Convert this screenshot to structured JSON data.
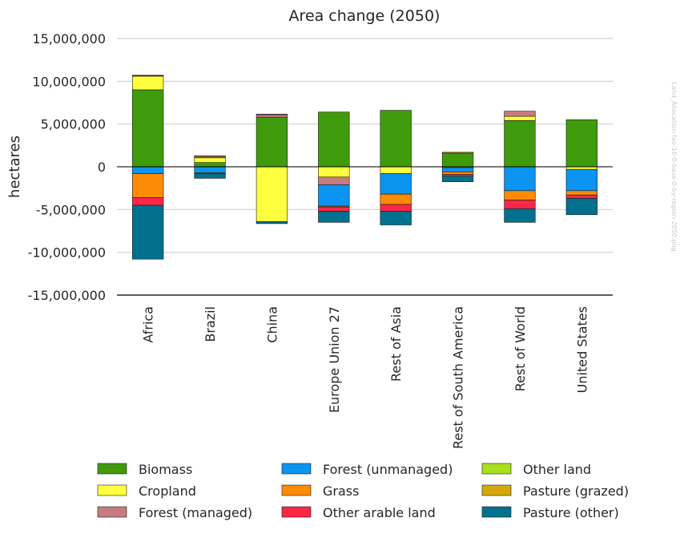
{
  "chart_data": {
    "type": "bar",
    "stacked": true,
    "title": "Area change (2050)",
    "ylabel": "hectares",
    "xlabel": "",
    "ylim": [
      -15000000,
      15000000
    ],
    "yticks": [
      15000000,
      10000000,
      5000000,
      0,
      -5000000,
      -10000000,
      -15000000
    ],
    "ytick_labels": [
      "15,000,000",
      "10,000,000",
      "5,000,000",
      "0",
      "-5,000,000",
      "-10,000,000",
      "-15,000,000"
    ],
    "grid": "horizontal",
    "legend_placement": "bottom",
    "categories": [
      "Africa",
      "Brazil",
      "China",
      "Europe Union 27",
      "Rest of Asia",
      "Rest of South America",
      "Rest of World",
      "United States"
    ],
    "series": [
      {
        "name": "Biomass",
        "color": "#3f9b0b",
        "values": [
          9000000,
          500000,
          5800000,
          6400000,
          6600000,
          1600000,
          5400000,
          5500000
        ]
      },
      {
        "name": "Cropland",
        "color": "#ffff3f",
        "values": [
          1600000,
          550000,
          -6400000,
          -1200000,
          -800000,
          -100000,
          500000,
          -300000
        ]
      },
      {
        "name": "Forest (managed)",
        "color": "#c87b7e",
        "values": [
          50000,
          150000,
          300000,
          -900000,
          0,
          0,
          600000,
          0
        ]
      },
      {
        "name": "Forest (unmanaged)",
        "color": "#0b94f0",
        "values": [
          -800000,
          -700000,
          0,
          -2500000,
          -2400000,
          -500000,
          -2800000,
          -2500000
        ]
      },
      {
        "name": "Grass",
        "color": "#fe8b05",
        "values": [
          -2800000,
          -100000,
          0,
          -100000,
          -1200000,
          -300000,
          -1100000,
          -500000
        ]
      },
      {
        "name": "Other arable land",
        "color": "#fc2647",
        "values": [
          -900000,
          0,
          0,
          -500000,
          -800000,
          -200000,
          -1000000,
          -400000
        ]
      },
      {
        "name": "Other land",
        "color": "#aadf1c",
        "values": [
          0,
          0,
          0,
          0,
          0,
          0,
          0,
          0
        ]
      },
      {
        "name": "Pasture (grazed)",
        "color": "#d5a80c",
        "values": [
          50000,
          100000,
          50000,
          0,
          0,
          100000,
          0,
          0
        ]
      },
      {
        "name": "Pasture (other)",
        "color": "#02718e",
        "values": [
          -6300000,
          -550000,
          -250000,
          -1300000,
          -1600000,
          -650000,
          -1600000,
          -1900000
        ]
      }
    ]
  },
  "watermark": "Land_Allocation-fao-10-0-base-0-by-region-2050.png"
}
